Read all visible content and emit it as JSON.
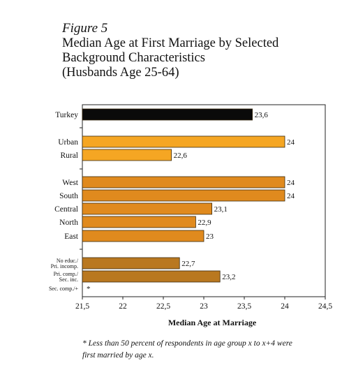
{
  "figure": {
    "label": "Figure 5",
    "title_lines": [
      "Median  Age at First Marriage by Selected",
      "Background Characteristics",
      "(Husbands Age 25-64)"
    ],
    "footnote_lines": [
      "* Less than 50 percent of respondents in age group x to x+4 were",
      "first married by age x."
    ]
  },
  "chart_data": {
    "type": "bar",
    "orientation": "horizontal",
    "title": "Median  Age at First Marriage by Selected Background Characteristics (Husbands Age 25-64)",
    "xlabel": "Median Age at Marriage",
    "ylabel": "",
    "xlim": [
      21.5,
      24.5
    ],
    "xticks": [
      "21,5",
      "22",
      "22,5",
      "23",
      "23,5",
      "24",
      "24,5"
    ],
    "grid": false,
    "categories": [
      {
        "label": "Turkey",
        "value": 23.6,
        "value_label": "23,6",
        "color": "#0a0a0a",
        "small": false
      },
      {
        "label": "Urban",
        "value": 24,
        "value_label": "24",
        "color": "#f5a623",
        "small": false
      },
      {
        "label": "Rural",
        "value": 22.6,
        "value_label": "22,6",
        "color": "#f5a623",
        "small": false
      },
      {
        "label": "West",
        "value": 24,
        "value_label": "24",
        "color": "#e08a1e",
        "small": false
      },
      {
        "label": "South",
        "value": 24,
        "value_label": "24",
        "color": "#e08a1e",
        "small": false
      },
      {
        "label": "Central",
        "value": 23.1,
        "value_label": "23,1",
        "color": "#e08a1e",
        "small": false
      },
      {
        "label": "North",
        "value": 22.9,
        "value_label": "22,9",
        "color": "#e08a1e",
        "small": false
      },
      {
        "label": "East",
        "value": 23,
        "value_label": "23",
        "color": "#e08a1e",
        "small": false
      },
      {
        "label": "No educ./ Pri. incomp.",
        "value": 22.7,
        "value_label": "22,7",
        "color": "#b97820",
        "small": true
      },
      {
        "label": "Pri. comp./ Sec. inc.",
        "value": 23.2,
        "value_label": "23,2",
        "color": "#b97820",
        "small": true
      },
      {
        "label": "Sec. comp./+",
        "value": null,
        "value_label": "*",
        "color": "#b97820",
        "small": true
      }
    ]
  }
}
